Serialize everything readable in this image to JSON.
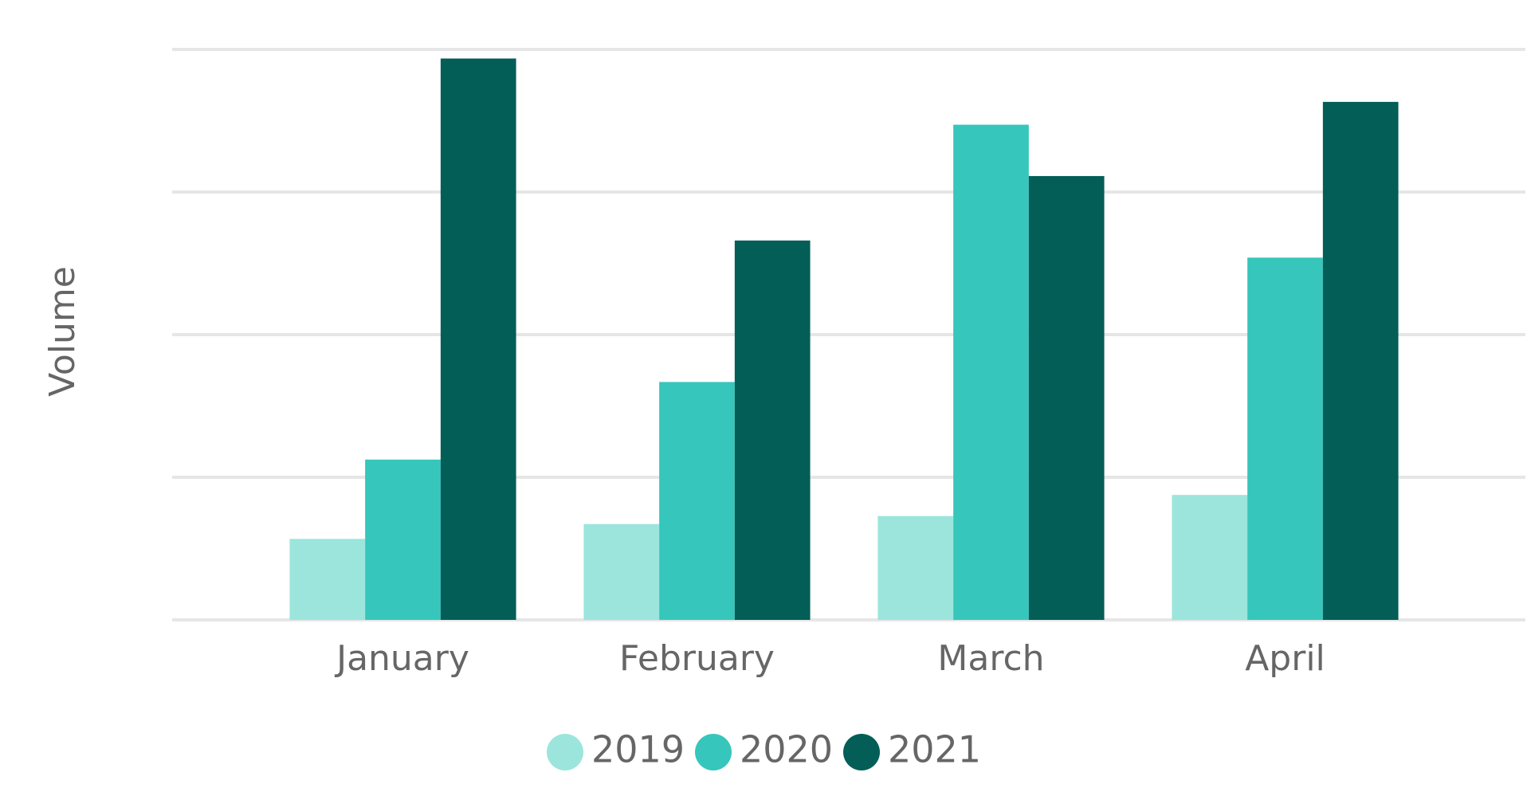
{
  "chart_data": {
    "type": "bar",
    "y_label": "Volume",
    "categories": [
      "January",
      "February",
      "March",
      "April"
    ],
    "series": [
      {
        "name": "2019",
        "color": "#9ce5dc",
        "values": [
          14.2,
          16.8,
          18.2,
          21.9
        ]
      },
      {
        "name": "2020",
        "color": "#36c6bb",
        "values": [
          28.1,
          41.7,
          86.8,
          63.5
        ]
      },
      {
        "name": "2021",
        "color": "#025e57",
        "values": [
          98.4,
          66.5,
          77.8,
          90.8
        ]
      }
    ],
    "ylim": [
      0,
      100
    ],
    "yticks": [
      0,
      25,
      50,
      75,
      100
    ],
    "grid": true,
    "legend": "bottom"
  }
}
